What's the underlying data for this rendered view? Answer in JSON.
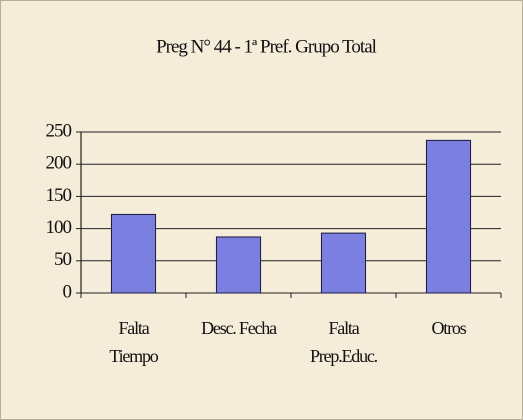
{
  "chart_data": {
    "type": "bar",
    "title": "Preg N° 44 - 1ª Pref. Grupo Total",
    "categories": [
      "Falta\nTiempo",
      "Desc. Fecha",
      "Falta\nPrep.Educ.",
      "Otros"
    ],
    "values": [
      122,
      87,
      93,
      237
    ],
    "color": "#7b80e0",
    "ylim": [
      0,
      250
    ],
    "yticks": [
      0,
      50,
      100,
      150,
      200,
      250
    ],
    "grid": true
  }
}
